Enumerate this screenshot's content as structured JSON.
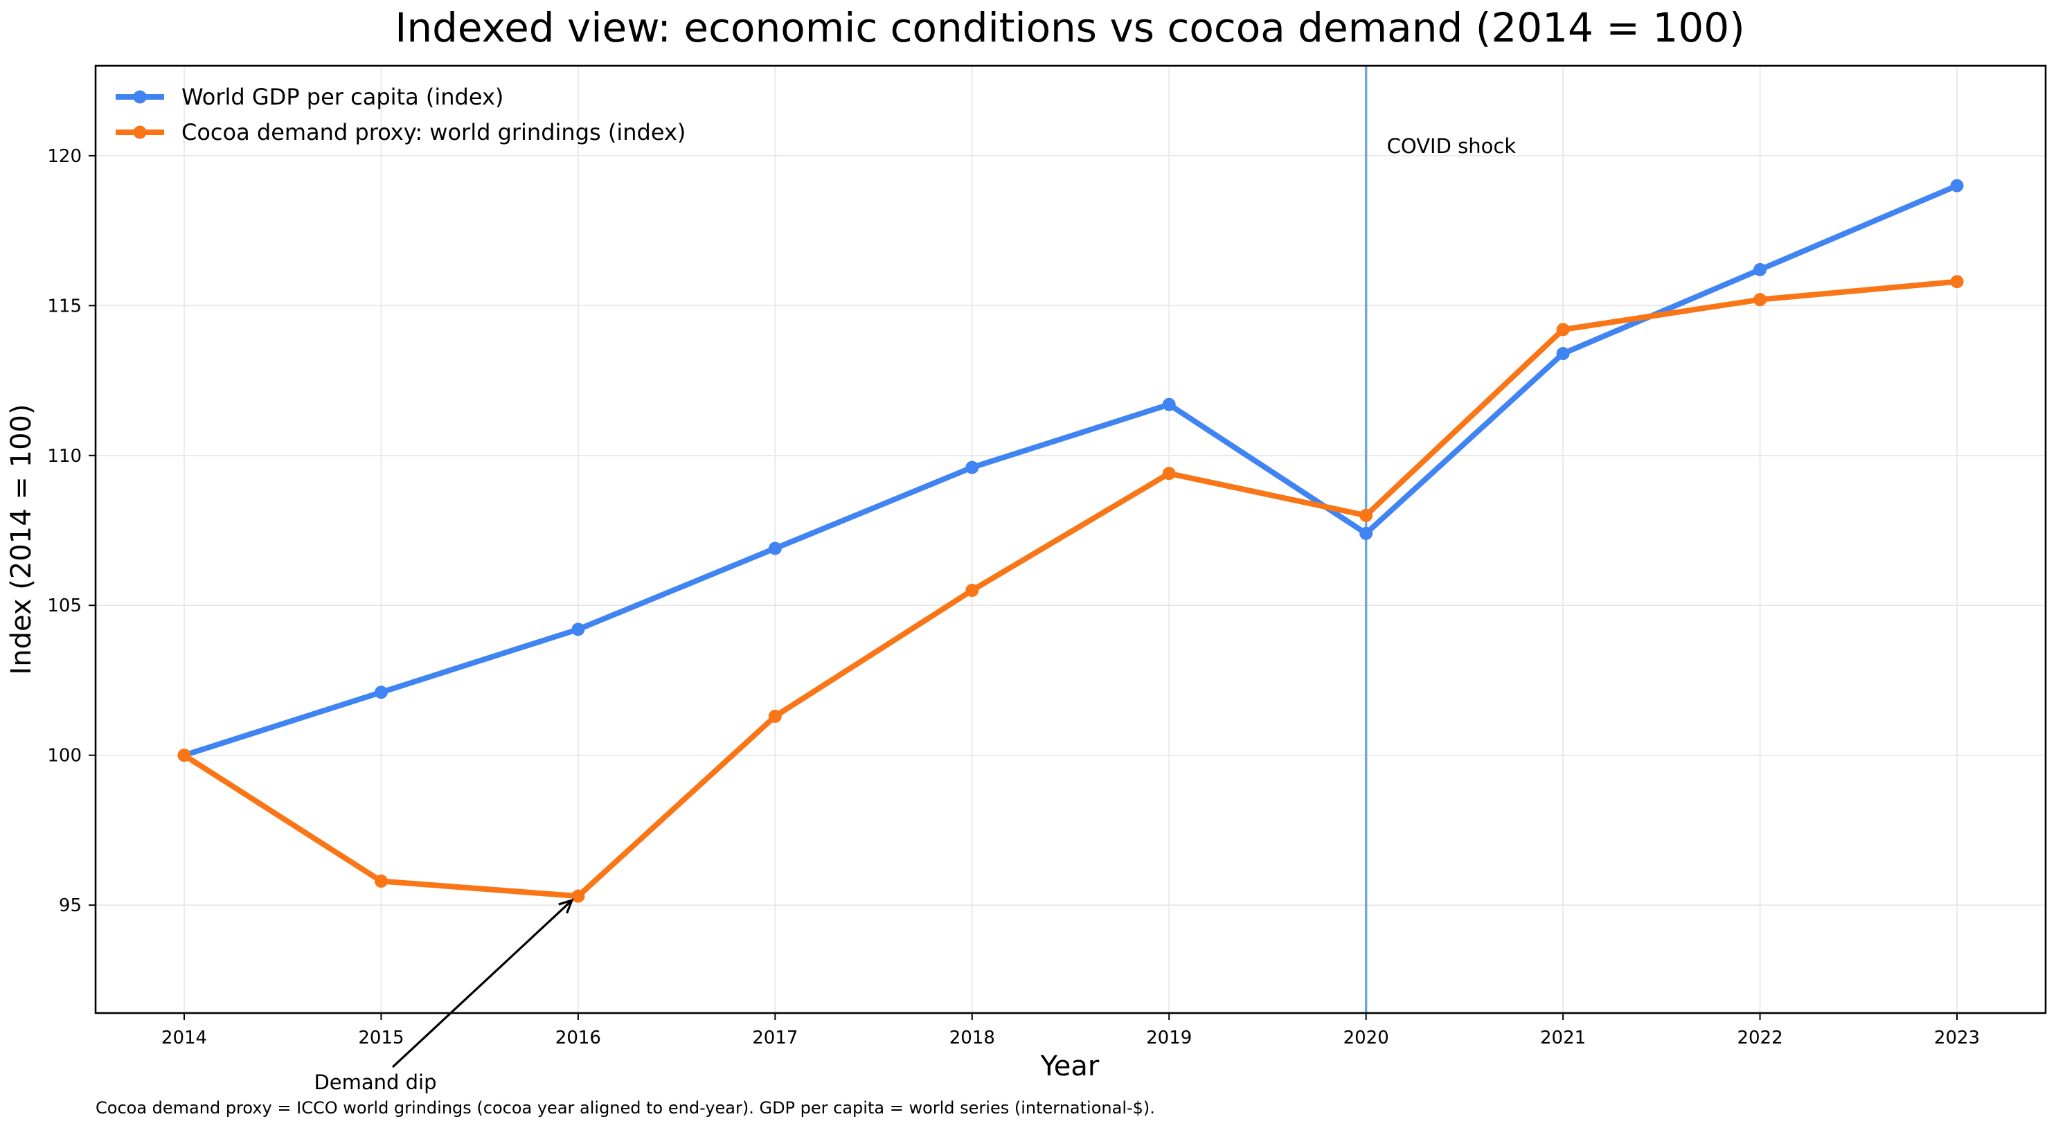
{
  "chart_data": {
    "type": "line",
    "title": "Indexed view: economic conditions vs cocoa demand (2014 = 100)",
    "xlabel": "Year",
    "ylabel": "Index (2014 = 100)",
    "x": [
      2014,
      2015,
      2016,
      2017,
      2018,
      2019,
      2020,
      2021,
      2022,
      2023
    ],
    "xticks": [
      "2014",
      "2015",
      "2016",
      "2017",
      "2018",
      "2019",
      "2020",
      "2021",
      "2022",
      "2023"
    ],
    "yticks": [
      95,
      100,
      105,
      110,
      115,
      120
    ],
    "xlim": [
      2013.55,
      2023.45
    ],
    "ylim": [
      91.4,
      123.0
    ],
    "grid": true,
    "legend_position": "top-left",
    "series": [
      {
        "name": "World GDP per capita (index)",
        "color": "#3f84f2",
        "marker": "circle",
        "values": [
          100.0,
          102.1,
          104.2,
          106.9,
          109.6,
          111.7,
          107.4,
          113.4,
          116.2,
          119.0
        ]
      },
      {
        "name": "Cocoa demand proxy: world grindings (index)",
        "color": "#f97516",
        "marker": "circle",
        "values": [
          100.0,
          95.8,
          95.3,
          101.3,
          105.5,
          109.4,
          108.0,
          114.2,
          115.2,
          115.8
        ]
      }
    ],
    "vlines": [
      {
        "x": 2020,
        "label": "COVID shock",
        "color": "#6fa8d4"
      }
    ],
    "annotations": [
      {
        "text": "Demand dip",
        "target_x": 2016,
        "target_y": 95.3,
        "text_x": 2015.0,
        "text_y": 89.4
      }
    ],
    "footnote": "Cocoa demand proxy = ICCO world grindings (cocoa year aligned to end-year). GDP per capita = world series (international-$)."
  }
}
